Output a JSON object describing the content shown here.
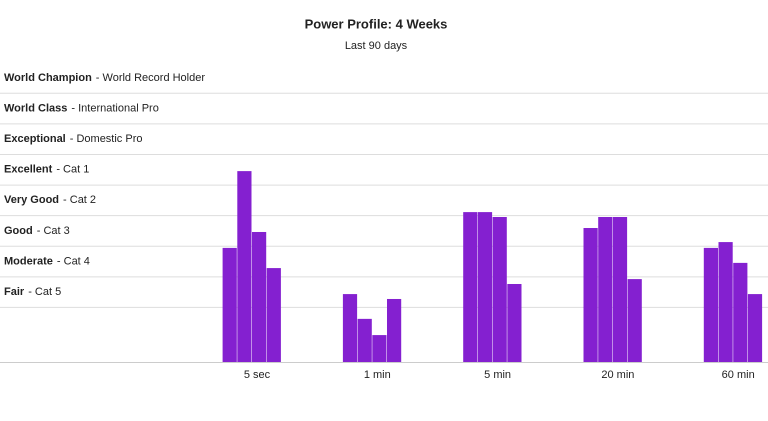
{
  "chart_data": {
    "type": "bar",
    "title": "Power Profile: 4 Weeks",
    "subtitle": "Last 90 days",
    "categories": [
      "5 sec",
      "1 min",
      "5 min",
      "20 min",
      "60 min"
    ],
    "series": [
      {
        "color": "#8420d0",
        "values": [
          3.93,
          2.42,
          5.1,
          4.58,
          3.93
        ]
      },
      {
        "color": "#8420d0",
        "values": [
          6.44,
          1.61,
          5.1,
          4.94,
          4.12
        ]
      },
      {
        "color": "#8420d0",
        "values": [
          4.45,
          1.08,
          4.94,
          4.94,
          3.44
        ]
      },
      {
        "color": "#8420d0",
        "values": [
          3.27,
          2.26,
          2.75,
          2.91,
          2.42
        ]
      }
    ],
    "ylim": [
      0.2,
      9
    ],
    "yticks": [
      {
        "value": 2,
        "label": "Fair",
        "detail": "- Cat 5"
      },
      {
        "value": 3,
        "label": "Moderate",
        "detail": "- Cat 4"
      },
      {
        "value": 4,
        "label": "Good",
        "detail": "- Cat 3"
      },
      {
        "value": 5,
        "label": "Very Good",
        "detail": "- Cat 2"
      },
      {
        "value": 6,
        "label": "Excellent",
        "detail": "- Cat 1"
      },
      {
        "value": 7,
        "label": "Exceptional",
        "detail": "- Domestic Pro"
      },
      {
        "value": 8,
        "label": "World Class",
        "detail": "- International Pro"
      },
      {
        "value": 9,
        "label": "World Champion",
        "detail": "- World Record Holder"
      }
    ],
    "grid": true
  }
}
